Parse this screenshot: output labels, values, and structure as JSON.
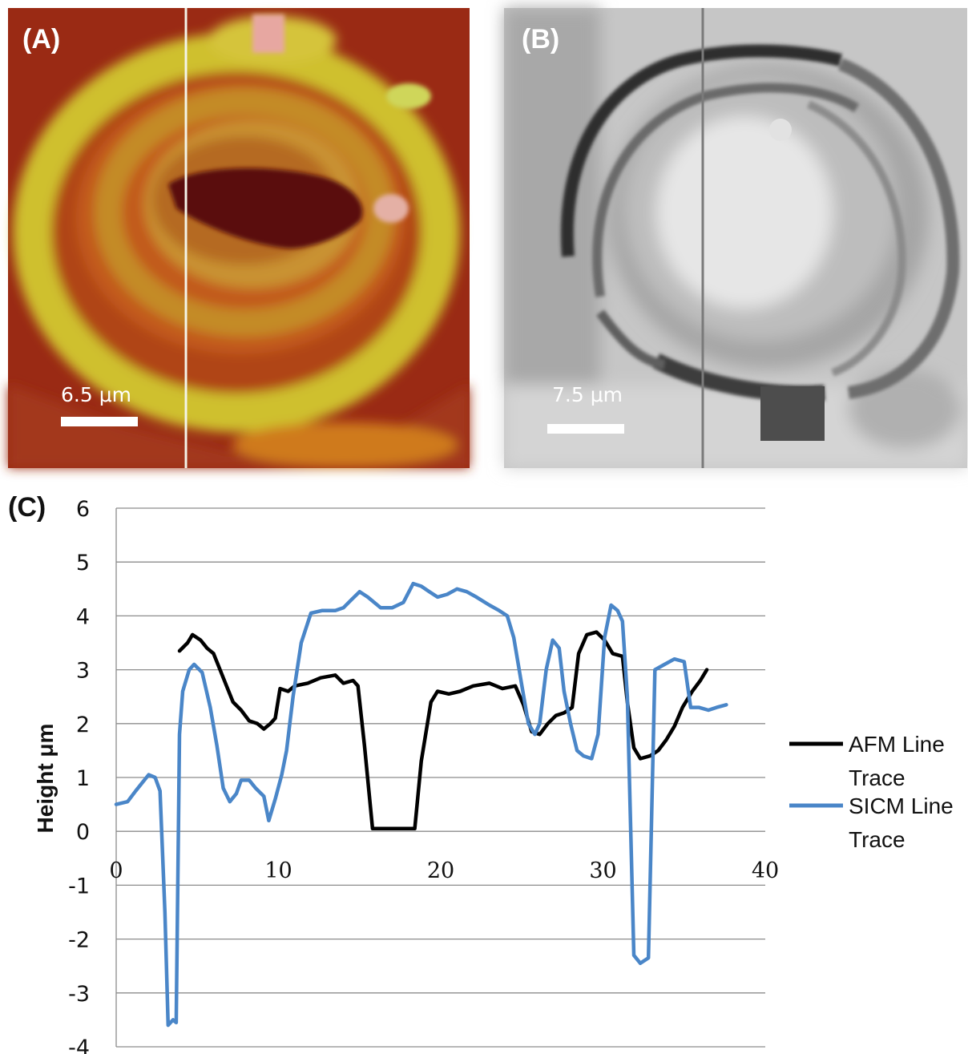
{
  "panel_a": {
    "label": "(A)",
    "scale_text": "6.5 μm"
  },
  "panel_b": {
    "label": "(B)",
    "scale_text": "7.5 μm"
  },
  "panel_c": {
    "label": "(C)"
  },
  "colors": {
    "afm": "#000000",
    "sicm": "#4a86c8",
    "grid": "#8c8c8c"
  },
  "chart_data": {
    "type": "line",
    "title": "",
    "xlabel": "",
    "ylabel": "Height μm",
    "xlim": [
      0,
      40
    ],
    "ylim": [
      -4,
      6
    ],
    "x_ticks": [
      0,
      10,
      20,
      30,
      40
    ],
    "y_ticks": [
      6,
      5,
      4,
      3,
      2,
      1,
      0,
      -1,
      -2,
      -3,
      -4
    ],
    "grid": true,
    "legend_position": "right",
    "series": [
      {
        "name": "AFM Line Trace",
        "color": "#000000",
        "points": [
          [
            3.9,
            3.35
          ],
          [
            4.4,
            3.5
          ],
          [
            4.7,
            3.65
          ],
          [
            5.2,
            3.55
          ],
          [
            5.6,
            3.4
          ],
          [
            6.0,
            3.3
          ],
          [
            6.4,
            3.0
          ],
          [
            6.8,
            2.7
          ],
          [
            7.2,
            2.4
          ],
          [
            7.7,
            2.25
          ],
          [
            8.2,
            2.05
          ],
          [
            8.7,
            2.0
          ],
          [
            9.1,
            1.9
          ],
          [
            9.5,
            2.0
          ],
          [
            9.8,
            2.1
          ],
          [
            10.1,
            2.65
          ],
          [
            10.6,
            2.6
          ],
          [
            11.0,
            2.7
          ],
          [
            11.8,
            2.75
          ],
          [
            12.6,
            2.85
          ],
          [
            13.5,
            2.9
          ],
          [
            14.0,
            2.75
          ],
          [
            14.6,
            2.8
          ],
          [
            14.9,
            2.7
          ],
          [
            15.3,
            1.6
          ],
          [
            15.8,
            0.05
          ],
          [
            17.2,
            0.05
          ],
          [
            18.4,
            0.05
          ],
          [
            18.8,
            1.3
          ],
          [
            19.4,
            2.4
          ],
          [
            19.8,
            2.6
          ],
          [
            20.5,
            2.55
          ],
          [
            21.2,
            2.6
          ],
          [
            22.0,
            2.7
          ],
          [
            23.0,
            2.75
          ],
          [
            23.8,
            2.65
          ],
          [
            24.6,
            2.7
          ],
          [
            25.1,
            2.35
          ],
          [
            25.6,
            1.85
          ],
          [
            26.1,
            1.8
          ],
          [
            26.6,
            2.0
          ],
          [
            27.1,
            2.15
          ],
          [
            27.6,
            2.2
          ],
          [
            28.1,
            2.3
          ],
          [
            28.5,
            3.3
          ],
          [
            29.0,
            3.65
          ],
          [
            29.6,
            3.7
          ],
          [
            30.1,
            3.55
          ],
          [
            30.6,
            3.3
          ],
          [
            31.2,
            3.25
          ],
          [
            31.5,
            2.4
          ],
          [
            31.9,
            1.55
          ],
          [
            32.3,
            1.35
          ],
          [
            32.9,
            1.4
          ],
          [
            33.4,
            1.5
          ],
          [
            33.9,
            1.7
          ],
          [
            34.4,
            1.95
          ],
          [
            34.9,
            2.3
          ],
          [
            35.5,
            2.6
          ],
          [
            36.0,
            2.8
          ],
          [
            36.4,
            3.0
          ]
        ]
      },
      {
        "name": "SICM Line Trace",
        "color": "#4a86c8",
        "points": [
          [
            0,
            0.5
          ],
          [
            0.7,
            0.55
          ],
          [
            1.2,
            0.75
          ],
          [
            1.6,
            0.9
          ],
          [
            2.0,
            1.05
          ],
          [
            2.4,
            1.0
          ],
          [
            2.7,
            0.75
          ],
          [
            3.0,
            -1.5
          ],
          [
            3.2,
            -3.6
          ],
          [
            3.5,
            -3.5
          ],
          [
            3.7,
            -3.55
          ],
          [
            3.9,
            1.8
          ],
          [
            4.1,
            2.6
          ],
          [
            4.5,
            3.0
          ],
          [
            4.8,
            3.1
          ],
          [
            5.3,
            2.95
          ],
          [
            5.8,
            2.3
          ],
          [
            6.2,
            1.6
          ],
          [
            6.6,
            0.8
          ],
          [
            7.0,
            0.55
          ],
          [
            7.4,
            0.7
          ],
          [
            7.7,
            0.95
          ],
          [
            8.2,
            0.95
          ],
          [
            8.6,
            0.8
          ],
          [
            9.1,
            0.65
          ],
          [
            9.4,
            0.2
          ],
          [
            9.8,
            0.6
          ],
          [
            10.2,
            1.05
          ],
          [
            10.5,
            1.5
          ],
          [
            10.9,
            2.5
          ],
          [
            11.4,
            3.5
          ],
          [
            12.0,
            4.05
          ],
          [
            12.7,
            4.1
          ],
          [
            13.5,
            4.1
          ],
          [
            14.0,
            4.15
          ],
          [
            14.5,
            4.3
          ],
          [
            15.0,
            4.45
          ],
          [
            15.5,
            4.35
          ],
          [
            16.3,
            4.15
          ],
          [
            17.0,
            4.15
          ],
          [
            17.7,
            4.25
          ],
          [
            18.3,
            4.6
          ],
          [
            18.8,
            4.55
          ],
          [
            19.3,
            4.45
          ],
          [
            19.8,
            4.35
          ],
          [
            20.4,
            4.4
          ],
          [
            21.0,
            4.5
          ],
          [
            21.6,
            4.45
          ],
          [
            22.2,
            4.35
          ],
          [
            23.0,
            4.2
          ],
          [
            23.6,
            4.1
          ],
          [
            24.1,
            4.0
          ],
          [
            24.5,
            3.6
          ],
          [
            25.0,
            2.7
          ],
          [
            25.4,
            2.0
          ],
          [
            25.8,
            1.8
          ],
          [
            26.1,
            2.0
          ],
          [
            26.5,
            3.0
          ],
          [
            26.9,
            3.55
          ],
          [
            27.3,
            3.4
          ],
          [
            27.6,
            2.6
          ],
          [
            28.0,
            2.0
          ],
          [
            28.4,
            1.5
          ],
          [
            28.8,
            1.4
          ],
          [
            29.3,
            1.35
          ],
          [
            29.7,
            1.8
          ],
          [
            30.1,
            3.6
          ],
          [
            30.5,
            4.2
          ],
          [
            30.9,
            4.1
          ],
          [
            31.2,
            3.9
          ],
          [
            31.5,
            2.5
          ],
          [
            31.9,
            -2.3
          ],
          [
            32.3,
            -2.45
          ],
          [
            32.8,
            -2.35
          ],
          [
            33.2,
            3.0
          ],
          [
            33.8,
            3.1
          ],
          [
            34.4,
            3.2
          ],
          [
            35.0,
            3.15
          ],
          [
            35.4,
            2.3
          ],
          [
            35.9,
            2.3
          ],
          [
            36.5,
            2.25
          ],
          [
            37.0,
            2.3
          ],
          [
            37.6,
            2.35
          ]
        ]
      }
    ]
  }
}
